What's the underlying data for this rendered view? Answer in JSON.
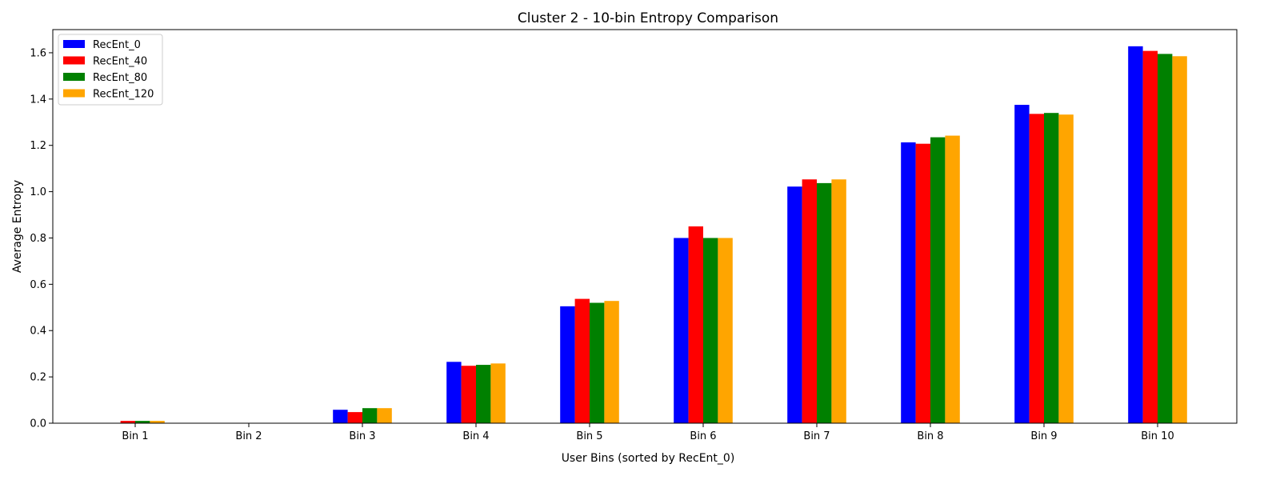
{
  "chart_data": {
    "type": "bar",
    "title": "Cluster 2 - 10-bin Entropy Comparison",
    "xlabel": "User Bins (sorted by RecEnt_0)",
    "ylabel": "Average Entropy",
    "ylim": [
      0,
      1.7
    ],
    "yticks": [
      0.0,
      0.2,
      0.4,
      0.6,
      0.8,
      1.0,
      1.2,
      1.4,
      1.6
    ],
    "ytick_labels": [
      "0.0",
      "0.2",
      "0.4",
      "0.6",
      "0.8",
      "1.0",
      "1.2",
      "1.4",
      "1.6"
    ],
    "categories": [
      "Bin 1",
      "Bin 2",
      "Bin 3",
      "Bin 4",
      "Bin 5",
      "Bin 6",
      "Bin 7",
      "Bin 8",
      "Bin 9",
      "Bin 10"
    ],
    "grid": false,
    "legend_position": "top-left",
    "series": [
      {
        "name": "RecEnt_0",
        "color": "#0000ff",
        "values": [
          0.0,
          0.0,
          0.058,
          0.265,
          0.505,
          0.8,
          1.022,
          1.213,
          1.375,
          1.628
        ]
      },
      {
        "name": "RecEnt_40",
        "color": "#ff0000",
        "values": [
          0.01,
          0.0,
          0.048,
          0.248,
          0.537,
          0.85,
          1.053,
          1.207,
          1.336,
          1.608
        ]
      },
      {
        "name": "RecEnt_80",
        "color": "#008000",
        "values": [
          0.01,
          0.0,
          0.065,
          0.252,
          0.52,
          0.8,
          1.037,
          1.235,
          1.34,
          1.595
        ]
      },
      {
        "name": "RecEnt_120",
        "color": "#ffa500",
        "values": [
          0.01,
          0.0,
          0.065,
          0.258,
          0.528,
          0.8,
          1.053,
          1.242,
          1.333,
          1.585
        ]
      }
    ]
  }
}
